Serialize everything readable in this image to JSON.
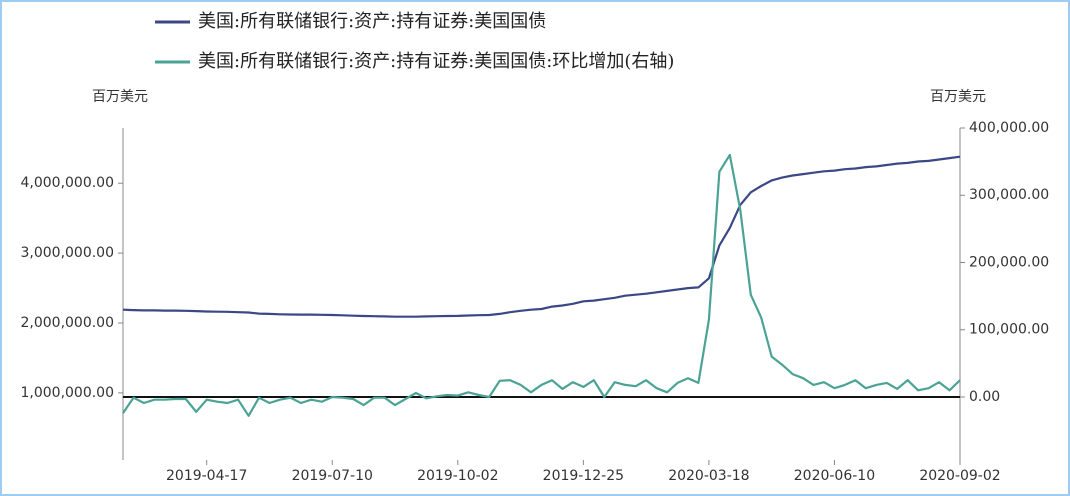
{
  "chart_data": {
    "type": "line",
    "legend": "top",
    "ylabel": "百万美元",
    "y2label": "百万美元",
    "categories": [
      null,
      null,
      null,
      null,
      null,
      null,
      null,
      null,
      "2019-04-17",
      null,
      null,
      null,
      null,
      null,
      null,
      null,
      null,
      null,
      null,
      null,
      "2019-07-10",
      null,
      null,
      null,
      null,
      null,
      null,
      null,
      null,
      null,
      null,
      null,
      "2019-10-02",
      null,
      null,
      null,
      null,
      null,
      null,
      null,
      null,
      null,
      null,
      null,
      "2019-12-25",
      null,
      null,
      null,
      null,
      null,
      null,
      null,
      null,
      null,
      null,
      null,
      "2020-03-18",
      null,
      null,
      null,
      null,
      null,
      null,
      null,
      null,
      null,
      null,
      null,
      "2020-06-10",
      null,
      null,
      null,
      null,
      null,
      null,
      null,
      null,
      null,
      null,
      null,
      "2020-09-02"
    ],
    "series": [
      {
        "name": "美国:所有联储银行:资产:持有证券:美国国债",
        "color": "#3c4786",
        "values": [
          2190000,
          2185000,
          2180000,
          2180000,
          2178000,
          2178000,
          2175000,
          2170000,
          2165000,
          2162000,
          2160000,
          2155000,
          2150000,
          2135000,
          2130000,
          2125000,
          2122000,
          2120000,
          2120000,
          2118000,
          2115000,
          2110000,
          2105000,
          2100000,
          2098000,
          2095000,
          2090000,
          2090000,
          2090000,
          2095000,
          2098000,
          2100000,
          2102000,
          2108000,
          2112000,
          2115000,
          2130000,
          2155000,
          2175000,
          2190000,
          2200000,
          2235000,
          2250000,
          2275000,
          2310000,
          2320000,
          2340000,
          2360000,
          2390000,
          2405000,
          2420000,
          2440000,
          2460000,
          2480000,
          2500000,
          2510000,
          2640000,
          3110000,
          3360000,
          3690000,
          3870000,
          3960000,
          4040000,
          4080000,
          4110000,
          4130000,
          4150000,
          4170000,
          4180000,
          4200000,
          4210000,
          4230000,
          4240000,
          4260000,
          4280000,
          4290000,
          4310000,
          4320000,
          4340000,
          4360000,
          4380000
        ]
      },
      {
        "name": "美国:所有联储银行:资产:持有证券:美国国债:环比增加(右轴)",
        "color": "#4aa394",
        "axis": "y2",
        "values": [
          -24000,
          -1000,
          -9000,
          -4000,
          -4000,
          -3000,
          -3000,
          -22000,
          -4000,
          -7000,
          -9000,
          -4000,
          -28000,
          -1000,
          -9000,
          -4000,
          -1000,
          -9000,
          -4000,
          -7000,
          0,
          -1000,
          -3000,
          -12000,
          -1000,
          -1000,
          -12000,
          -3000,
          6000,
          -2000,
          1000,
          3000,
          2000,
          7000,
          3000,
          0,
          24000,
          25000,
          18000,
          7000,
          18000,
          25000,
          12000,
          22000,
          15000,
          25000,
          0,
          22000,
          18000,
          16000,
          25000,
          13000,
          7000,
          21000,
          28000,
          21000,
          115000,
          335000,
          360000,
          278000,
          152000,
          118000,
          60000,
          48000,
          34000,
          28000,
          18000,
          22000,
          13000,
          18000,
          25000,
          13000,
          18000,
          21000,
          12000,
          25000,
          10000,
          13000,
          22000,
          10000,
          25000
        ]
      }
    ],
    "ylim": [
      40000,
      4790000
    ],
    "yticks": [
      {
        "value": 1000000,
        "label": "1,000,000.00"
      },
      {
        "value": 2000000,
        "label": "2,000,000.00"
      },
      {
        "value": 3000000,
        "label": "3,000,000.00"
      },
      {
        "value": 4000000,
        "label": "4,000,000.00"
      }
    ],
    "y2lim": [
      -93700,
      400000
    ],
    "y2ticks": [
      {
        "value": 0,
        "label": "0.00"
      },
      {
        "value": 100000,
        "label": "100,000.00"
      },
      {
        "value": 200000,
        "label": "200,000.00"
      },
      {
        "value": 300000,
        "label": "300,000.00"
      },
      {
        "value": 400000,
        "label": "400,000.00"
      }
    ]
  }
}
